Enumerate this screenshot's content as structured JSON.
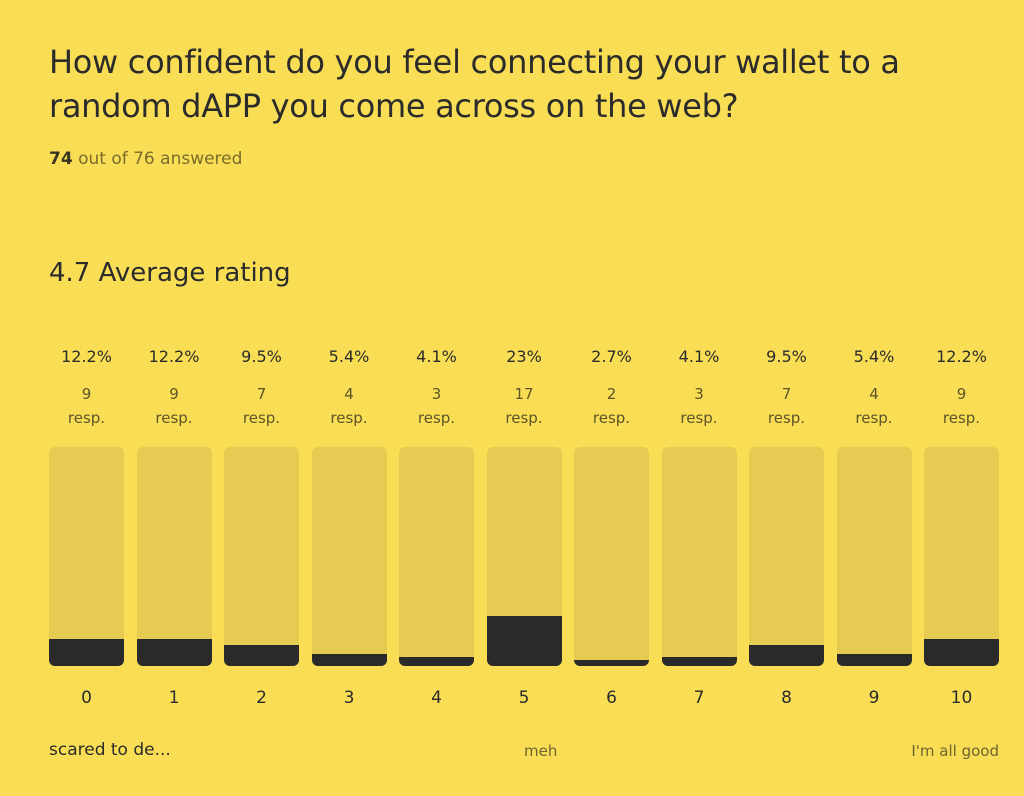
{
  "question": {
    "title": "How confident do you feel connecting your wallet to a random dAPP you come across on the web?",
    "answered_count": "74",
    "answered_suffix": "out of 76 answered"
  },
  "average": "4.7 Average rating",
  "colors": {
    "background": "#F9DE55",
    "bar_track": "#E5CB51",
    "bar_fill": "#2A2A2A"
  },
  "chart_data": {
    "type": "bar",
    "categories": [
      "0",
      "1",
      "2",
      "3",
      "4",
      "5",
      "6",
      "7",
      "8",
      "9",
      "10"
    ],
    "percent_labels": [
      "12.2%",
      "12.2%",
      "9.5%",
      "5.4%",
      "4.1%",
      "23%",
      "2.7%",
      "4.1%",
      "9.5%",
      "5.4%",
      "12.2%"
    ],
    "values": [
      12.2,
      12.2,
      9.5,
      5.4,
      4.1,
      23,
      2.7,
      4.1,
      9.5,
      5.4,
      12.2
    ],
    "responses": [
      "9",
      "9",
      "7",
      "4",
      "3",
      "17",
      "2",
      "3",
      "7",
      "4",
      "9"
    ],
    "resp_unit": "resp.",
    "ylim": [
      0,
      100
    ],
    "scale_labels": {
      "low": "scared to de...",
      "mid": "meh",
      "high": "I'm all good"
    }
  }
}
